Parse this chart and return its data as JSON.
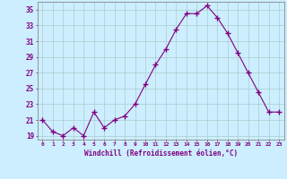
{
  "x": [
    0,
    1,
    2,
    3,
    4,
    5,
    6,
    7,
    8,
    9,
    10,
    11,
    12,
    13,
    14,
    15,
    16,
    17,
    18,
    19,
    20,
    21,
    22,
    23
  ],
  "y": [
    21,
    19.5,
    19,
    20,
    19,
    22,
    20,
    21,
    21.5,
    23,
    25.5,
    28,
    30,
    32.5,
    34.5,
    34.5,
    35.5,
    34,
    32,
    29.5,
    27,
    24.5,
    22,
    22
  ],
  "line_color": "#800080",
  "marker": "+",
  "marker_size": 4,
  "bg_color": "#cceeff",
  "grid_color": "#aacccc",
  "xlabel": "Windchill (Refroidissement éolien,°C)",
  "xlabel_color": "#800080",
  "tick_color": "#800080",
  "spine_color": "#888888",
  "ylim": [
    18.5,
    36
  ],
  "yticks": [
    19,
    21,
    23,
    25,
    27,
    29,
    31,
    33,
    35
  ],
  "xticks": [
    0,
    1,
    2,
    3,
    4,
    5,
    6,
    7,
    8,
    9,
    10,
    11,
    12,
    13,
    14,
    15,
    16,
    17,
    18,
    19,
    20,
    21,
    22,
    23
  ],
  "xlim": [
    -0.5,
    23.5
  ]
}
